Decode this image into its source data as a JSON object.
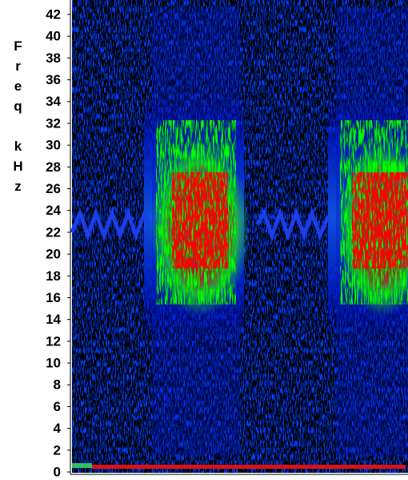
{
  "chart_data": {
    "type": "spectrogram",
    "y_label": "Freq kHz",
    "ylim": [
      0,
      42
    ],
    "yticks": [
      0,
      2,
      4,
      6,
      8,
      10,
      12,
      14,
      16,
      18,
      20,
      22,
      24,
      26,
      28,
      30,
      32,
      34,
      36,
      38,
      40,
      42
    ]
  }
}
